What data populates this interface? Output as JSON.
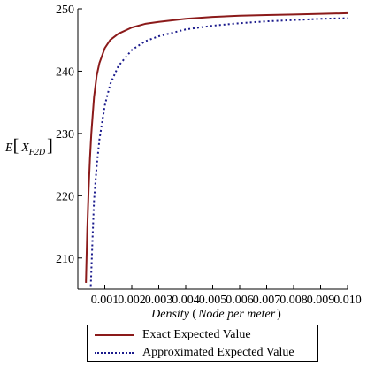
{
  "chart_data": {
    "type": "line",
    "ylabel": {
      "base": "E",
      "sub": "X",
      "subsub": "F2D"
    },
    "xlabel": {
      "main": "Density",
      "unit": "Node per meter"
    },
    "xlim": [
      0.0,
      0.01
    ],
    "ylim": [
      205,
      250
    ],
    "xticks": [
      {
        "value": 0.001,
        "label": "0.001"
      },
      {
        "value": 0.002,
        "label": "0.002"
      },
      {
        "value": 0.003,
        "label": "0.003"
      },
      {
        "value": 0.004,
        "label": "0.004"
      },
      {
        "value": 0.005,
        "label": "0.005"
      },
      {
        "value": 0.006,
        "label": "0.006"
      },
      {
        "value": 0.007,
        "label": "0.007"
      },
      {
        "value": 0.008,
        "label": "0.008"
      },
      {
        "value": 0.009,
        "label": "0.009"
      },
      {
        "value": 0.01,
        "label": "0.010"
      }
    ],
    "yticks": [
      {
        "value": 210,
        "label": "210"
      },
      {
        "value": 220,
        "label": "220"
      },
      {
        "value": 230,
        "label": "230"
      },
      {
        "value": 240,
        "label": "240"
      },
      {
        "value": 250,
        "label": "250"
      }
    ],
    "series": [
      {
        "name": "Exact Expected Value",
        "color": "#8b1a1a",
        "style": "solid",
        "x": [
          0.0003,
          0.00035,
          0.0004,
          0.00045,
          0.0005,
          0.0006,
          0.0007,
          0.0008,
          0.001,
          0.0012,
          0.0015,
          0.002,
          0.0025,
          0.003,
          0.004,
          0.005,
          0.006,
          0.007,
          0.008,
          0.009,
          0.01
        ],
        "y": [
          206.0,
          214.6,
          221.0,
          226.0,
          230.0,
          235.8,
          239.3,
          241.3,
          243.7,
          245.0,
          246.0,
          247.0,
          247.6,
          247.9,
          248.4,
          248.7,
          248.9,
          249.0,
          249.1,
          249.2,
          249.3
        ]
      },
      {
        "name": "Approximated Expected Value",
        "color": "#1a1a8c",
        "style": "dotted",
        "x": [
          0.00048,
          0.00055,
          0.0006,
          0.0007,
          0.0008,
          0.001,
          0.0012,
          0.0015,
          0.002,
          0.0025,
          0.003,
          0.004,
          0.005,
          0.006,
          0.007,
          0.008,
          0.009,
          0.01
        ],
        "y": [
          205.5,
          213.7,
          219.2,
          224.8,
          229.0,
          234.5,
          237.9,
          240.8,
          243.4,
          244.8,
          245.6,
          246.7,
          247.3,
          247.7,
          248.0,
          248.2,
          248.4,
          248.5
        ]
      }
    ],
    "legend": {
      "placement": "bottom"
    }
  }
}
